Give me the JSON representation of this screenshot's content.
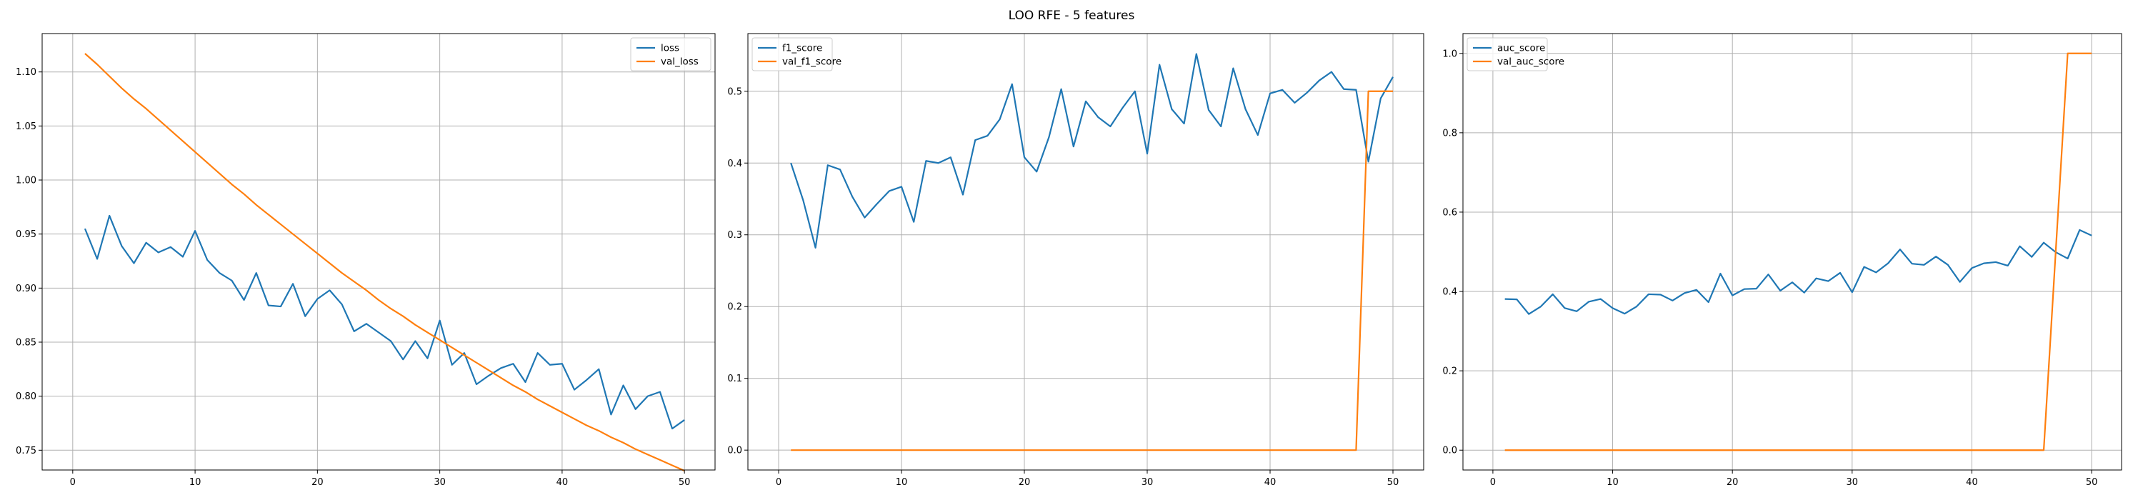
{
  "figure": {
    "title": "LOO RFE - 5 features"
  },
  "chart_data": [
    {
      "type": "line",
      "title": "",
      "xlabel": "",
      "ylabel": "",
      "xlim": [
        -2.5,
        52.5
      ],
      "ylim": [
        0.7317,
        1.1355
      ],
      "x_ticks": [
        0,
        10,
        20,
        30,
        40,
        50
      ],
      "x_tick_labels": [
        "0",
        "10",
        "20",
        "30",
        "40",
        "50"
      ],
      "y_ticks": [
        0.75,
        0.8,
        0.85,
        0.9,
        0.95,
        1.0,
        1.05,
        1.1
      ],
      "y_tick_labels": [
        "0.75",
        "0.80",
        "0.85",
        "0.90",
        "0.95",
        "1.00",
        "1.05",
        "1.10"
      ],
      "grid": true,
      "legend_position": "top-right",
      "x": [
        1,
        2,
        3,
        4,
        5,
        6,
        7,
        8,
        9,
        10,
        11,
        12,
        13,
        14,
        15,
        16,
        17,
        18,
        19,
        20,
        21,
        22,
        23,
        24,
        25,
        26,
        27,
        28,
        29,
        30,
        31,
        32,
        33,
        34,
        35,
        36,
        37,
        38,
        39,
        40,
        41,
        42,
        43,
        44,
        45,
        46,
        47,
        48,
        49,
        50
      ],
      "series": [
        {
          "name": "loss",
          "color": "#1f77b4",
          "values": [
            0.955,
            0.927,
            0.967,
            0.939,
            0.923,
            0.942,
            0.933,
            0.938,
            0.929,
            0.953,
            0.926,
            0.914,
            0.907,
            0.889,
            0.914,
            0.884,
            0.883,
            0.904,
            0.874,
            0.89,
            0.898,
            0.885,
            0.86,
            0.867,
            0.859,
            0.851,
            0.834,
            0.851,
            0.835,
            0.87,
            0.829,
            0.84,
            0.811,
            0.819,
            0.826,
            0.83,
            0.813,
            0.84,
            0.829,
            0.83,
            0.806,
            0.815,
            0.825,
            0.783,
            0.81,
            0.788,
            0.8,
            0.804,
            0.77,
            0.778
          ]
        },
        {
          "name": "val_loss",
          "color": "#ff7f0e",
          "values": [
            1.117,
            1.107,
            1.096,
            1.085,
            1.075,
            1.066,
            1.056,
            1.046,
            1.036,
            1.026,
            1.016,
            1.006,
            0.996,
            0.987,
            0.977,
            0.968,
            0.959,
            0.95,
            0.941,
            0.932,
            0.923,
            0.914,
            0.906,
            0.898,
            0.889,
            0.881,
            0.874,
            0.866,
            0.859,
            0.852,
            0.845,
            0.838,
            0.831,
            0.824,
            0.817,
            0.81,
            0.804,
            0.797,
            0.791,
            0.785,
            0.779,
            0.773,
            0.768,
            0.762,
            0.757,
            0.751,
            0.746,
            0.741,
            0.736,
            0.731
          ]
        }
      ]
    },
    {
      "type": "line",
      "title": "",
      "xlabel": "",
      "ylabel": "",
      "xlim": [
        -2.5,
        52.5
      ],
      "ylim": [
        -0.0277,
        0.5804
      ],
      "x_ticks": [
        0,
        10,
        20,
        30,
        40,
        50
      ],
      "x_tick_labels": [
        "0",
        "10",
        "20",
        "30",
        "40",
        "50"
      ],
      "y_ticks": [
        0.0,
        0.1,
        0.2,
        0.3,
        0.4,
        0.5
      ],
      "y_tick_labels": [
        "0.0",
        "0.1",
        "0.2",
        "0.3",
        "0.4",
        "0.5"
      ],
      "grid": true,
      "legend_position": "top-left",
      "x": [
        1,
        2,
        3,
        4,
        5,
        6,
        7,
        8,
        9,
        10,
        11,
        12,
        13,
        14,
        15,
        16,
        17,
        18,
        19,
        20,
        21,
        22,
        23,
        24,
        25,
        26,
        27,
        28,
        29,
        30,
        31,
        32,
        33,
        34,
        35,
        36,
        37,
        38,
        39,
        40,
        41,
        42,
        43,
        44,
        45,
        46,
        47,
        48,
        49,
        50
      ],
      "series": [
        {
          "name": "f1_score",
          "color": "#1f77b4",
          "values": [
            0.4,
            0.348,
            0.282,
            0.397,
            0.391,
            0.353,
            0.324,
            0.343,
            0.361,
            0.367,
            0.318,
            0.403,
            0.4,
            0.408,
            0.356,
            0.432,
            0.438,
            0.461,
            0.51,
            0.408,
            0.388,
            0.436,
            0.503,
            0.423,
            0.486,
            0.464,
            0.451,
            0.477,
            0.5,
            0.413,
            0.537,
            0.475,
            0.455,
            0.552,
            0.474,
            0.451,
            0.532,
            0.475,
            0.439,
            0.497,
            0.502,
            0.484,
            0.498,
            0.515,
            0.527,
            0.503,
            0.502,
            0.402,
            0.49,
            0.52
          ]
        },
        {
          "name": "val_f1_score",
          "color": "#ff7f0e",
          "values": [
            0,
            0,
            0,
            0,
            0,
            0,
            0,
            0,
            0,
            0,
            0,
            0,
            0,
            0,
            0,
            0,
            0,
            0,
            0,
            0,
            0,
            0,
            0,
            0,
            0,
            0,
            0,
            0,
            0,
            0,
            0,
            0,
            0,
            0,
            0,
            0,
            0,
            0,
            0,
            0,
            0,
            0,
            0,
            0,
            0,
            0,
            0,
            0.5,
            0.5,
            0.5
          ]
        }
      ]
    },
    {
      "type": "line",
      "title": "",
      "xlabel": "",
      "ylabel": "",
      "xlim": [
        -2.5,
        52.5
      ],
      "ylim": [
        -0.05,
        1.05
      ],
      "x_ticks": [
        0,
        10,
        20,
        30,
        40,
        50
      ],
      "x_tick_labels": [
        "0",
        "10",
        "20",
        "30",
        "40",
        "50"
      ],
      "y_ticks": [
        0.0,
        0.2,
        0.4,
        0.6,
        0.8,
        1.0
      ],
      "y_tick_labels": [
        "0.0",
        "0.2",
        "0.4",
        "0.6",
        "0.8",
        "1.0"
      ],
      "grid": true,
      "legend_position": "top-left",
      "x": [
        1,
        2,
        3,
        4,
        5,
        6,
        7,
        8,
        9,
        10,
        11,
        12,
        13,
        14,
        15,
        16,
        17,
        18,
        19,
        20,
        21,
        22,
        23,
        24,
        25,
        26,
        27,
        28,
        29,
        30,
        31,
        32,
        33,
        34,
        35,
        36,
        37,
        38,
        39,
        40,
        41,
        42,
        43,
        44,
        45,
        46,
        47,
        48,
        49,
        50
      ],
      "series": [
        {
          "name": "auc_score",
          "color": "#1f77b4",
          "values": [
            0.381,
            0.38,
            0.343,
            0.362,
            0.393,
            0.358,
            0.35,
            0.374,
            0.381,
            0.358,
            0.344,
            0.362,
            0.393,
            0.392,
            0.377,
            0.396,
            0.404,
            0.373,
            0.445,
            0.39,
            0.406,
            0.407,
            0.443,
            0.402,
            0.423,
            0.397,
            0.433,
            0.426,
            0.447,
            0.398,
            0.462,
            0.448,
            0.471,
            0.506,
            0.47,
            0.467,
            0.488,
            0.467,
            0.424,
            0.459,
            0.471,
            0.474,
            0.465,
            0.514,
            0.487,
            0.523,
            0.499,
            0.483,
            0.555,
            0.541
          ]
        },
        {
          "name": "val_auc_score",
          "color": "#ff7f0e",
          "values": [
            0,
            0,
            0,
            0,
            0,
            0,
            0,
            0,
            0,
            0,
            0,
            0,
            0,
            0,
            0,
            0,
            0,
            0,
            0,
            0,
            0,
            0,
            0,
            0,
            0,
            0,
            0,
            0,
            0,
            0,
            0,
            0,
            0,
            0,
            0,
            0,
            0,
            0,
            0,
            0,
            0,
            0,
            0,
            0,
            0,
            0,
            0.5,
            1.0,
            1.0,
            1.0
          ]
        }
      ]
    }
  ]
}
